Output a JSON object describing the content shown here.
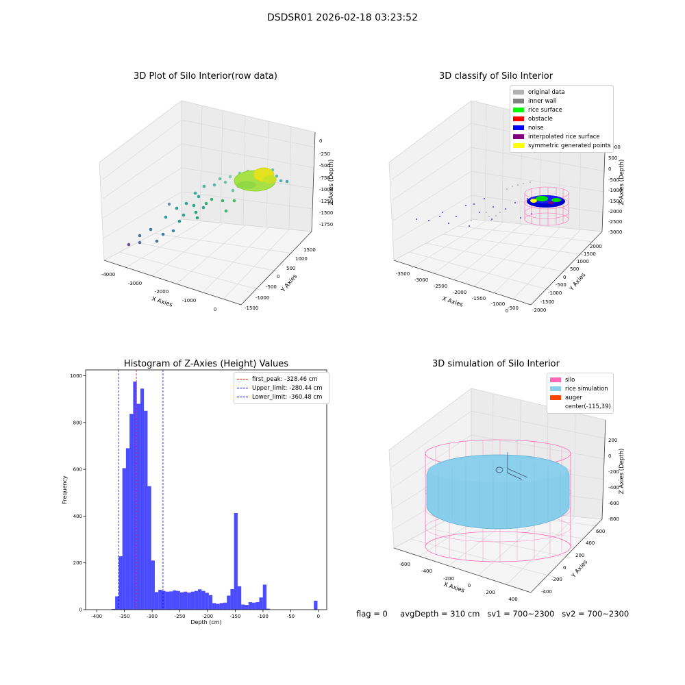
{
  "suptitle": "DSDSR01 2026-02-18 03:23:52",
  "panel1": {
    "title": "3D Plot of Silo Interior(row data)",
    "xlabel": "X Axies",
    "ylabel": "Y Axies",
    "zlabel": "Z Axies (Depth)",
    "xticks": [
      "-4000",
      "-3000",
      "-2000",
      "-1000",
      "0"
    ],
    "yticks": [
      "-1500",
      "-1000",
      "-500",
      "0",
      "500",
      "1000",
      "1500"
    ],
    "zticks": [
      "0",
      "-250",
      "-500",
      "-750",
      "-1000",
      "-1250",
      "-1500",
      "-1750"
    ]
  },
  "panel2": {
    "title": "3D classify of Silo Interior",
    "xlabel": "X Axies",
    "ylabel": "Y Axies",
    "zlabel": "Z Axies (Depth)",
    "xticks": [
      "-3500",
      "-3000",
      "-2500",
      "-2000",
      "-1500",
      "-1000",
      "-500",
      "0"
    ],
    "yticks": [
      "-2000",
      "-1500",
      "-1000",
      "-500",
      "0",
      "500",
      "1000",
      "1500",
      "2000"
    ],
    "zticks": [
      "1000",
      "500",
      "0",
      "-500",
      "-1000",
      "-1500",
      "-2000",
      "-2500",
      "-3000"
    ],
    "legend": [
      {
        "label": "original data",
        "color": "#b2b2b2"
      },
      {
        "label": "inner wall",
        "color": "#808080"
      },
      {
        "label": "rice surface",
        "color": "#00ff00"
      },
      {
        "label": "obstacle",
        "color": "#ff0000"
      },
      {
        "label": "noise",
        "color": "#0000ff"
      },
      {
        "label": "interpolated rice surface",
        "color": "#800080"
      },
      {
        "label": "symmetric generated points",
        "color": "#ffff00"
      }
    ]
  },
  "panel3": {
    "chart_data": {
      "type": "bar",
      "title": "Histogram of Z-Axies (Height) Values",
      "xlabel": "Depth (cm)",
      "ylabel": "Frequency",
      "xlim": [
        -420,
        15
      ],
      "ylim": [
        0,
        1025
      ],
      "xticks": [
        -400,
        -350,
        -300,
        -250,
        -200,
        -150,
        -100,
        -50,
        0
      ],
      "yticks": [
        0,
        200,
        400,
        600,
        800,
        1000
      ],
      "bin_width": 6.5,
      "bins": [
        {
          "x": -370,
          "y": 3
        },
        {
          "x": -363.5,
          "y": 57
        },
        {
          "x": -357,
          "y": 228
        },
        {
          "x": -350.5,
          "y": 605
        },
        {
          "x": -344,
          "y": 690
        },
        {
          "x": -337.5,
          "y": 837
        },
        {
          "x": -331,
          "y": 975
        },
        {
          "x": -324.5,
          "y": 880
        },
        {
          "x": -318,
          "y": 945
        },
        {
          "x": -311.5,
          "y": 850
        },
        {
          "x": -305,
          "y": 528
        },
        {
          "x": -298.5,
          "y": 210
        },
        {
          "x": -292,
          "y": 75
        },
        {
          "x": -285.5,
          "y": 85
        },
        {
          "x": -279,
          "y": 80
        },
        {
          "x": -272.5,
          "y": 77
        },
        {
          "x": -266,
          "y": 78
        },
        {
          "x": -259.5,
          "y": 82
        },
        {
          "x": -253,
          "y": 80
        },
        {
          "x": -246.5,
          "y": 74
        },
        {
          "x": -240,
          "y": 77
        },
        {
          "x": -233.5,
          "y": 73
        },
        {
          "x": -227,
          "y": 77
        },
        {
          "x": -220.5,
          "y": 80
        },
        {
          "x": -214,
          "y": 87
        },
        {
          "x": -207.5,
          "y": 80
        },
        {
          "x": -201,
          "y": 72
        },
        {
          "x": -194.5,
          "y": 62
        },
        {
          "x": -188,
          "y": 28
        },
        {
          "x": -181.5,
          "y": 25
        },
        {
          "x": -175,
          "y": 28
        },
        {
          "x": -168.5,
          "y": 30
        },
        {
          "x": -162,
          "y": 60
        },
        {
          "x": -155.5,
          "y": 88
        },
        {
          "x": -149,
          "y": 413
        },
        {
          "x": -142.5,
          "y": 100
        },
        {
          "x": -136,
          "y": 22
        },
        {
          "x": -129.5,
          "y": 20
        },
        {
          "x": -123,
          "y": 32
        },
        {
          "x": -116.5,
          "y": 30
        },
        {
          "x": -110,
          "y": 32
        },
        {
          "x": -103.5,
          "y": 52
        },
        {
          "x": -97,
          "y": 107
        },
        {
          "x": -90.5,
          "y": 4
        },
        {
          "x": -84,
          "y": 0
        },
        {
          "x": -77.5,
          "y": 0
        },
        {
          "x": -71,
          "y": 0
        },
        {
          "x": -64.5,
          "y": 0
        },
        {
          "x": -5,
          "y": 38
        }
      ],
      "vlines": [
        {
          "x": -328.46,
          "color": "#ff0000",
          "label": "first_peak: -328.46 cm"
        },
        {
          "x": -280.44,
          "color": "#0000ff",
          "label": "Upper_limit: -280.44 cm"
        },
        {
          "x": -360.48,
          "color": "#0000ff",
          "label": "Lower_limit: -360.48 cm"
        }
      ],
      "bar_color": "#0000ff",
      "legend_position": "top-right"
    }
  },
  "panel4": {
    "title": "3D simulation of Silo Interior",
    "xlabel": "X Axies",
    "ylabel": "Y Axies",
    "zlabel": "Z Axies (Depth)",
    "xticks": [
      "-600",
      "-400",
      "-200",
      "0",
      "200",
      "400"
    ],
    "yticks": [
      "-400",
      "-200",
      "0",
      "200",
      "400",
      "600"
    ],
    "zticks": [
      "200",
      "0",
      "-200",
      "-400",
      "-600",
      "-800"
    ],
    "legend": [
      {
        "label": "silo",
        "color": "#ff69b4"
      },
      {
        "label": "rice simulation",
        "color": "#87ceeb"
      },
      {
        "label": "auger",
        "color": "#ff4500"
      },
      {
        "label": "center(-115,39)",
        "color": ""
      }
    ]
  },
  "footer": {
    "flag": "flag = 0",
    "avg": "avgDepth = 310 cm",
    "sv1": "sv1 = 700~2300",
    "sv2": "sv2 = 700~2300"
  }
}
